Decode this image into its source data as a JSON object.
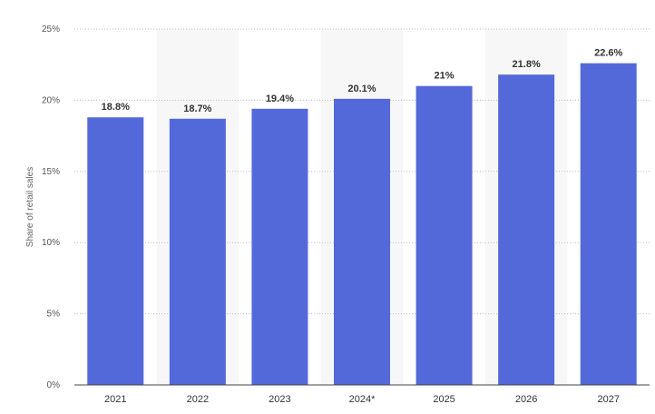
{
  "chart_data": {
    "type": "bar",
    "categories": [
      "2021",
      "2022",
      "2023",
      "2024*",
      "2025",
      "2026",
      "2027"
    ],
    "values": [
      18.8,
      18.7,
      19.4,
      20.1,
      21,
      21.8,
      22.6
    ],
    "value_labels": [
      "18.8%",
      "18.7%",
      "19.4%",
      "20.1%",
      "21%",
      "21.8%",
      "22.6%"
    ],
    "ylabel": "Share of retail sales",
    "ylim": [
      0,
      25
    ],
    "yticks": [
      0,
      5,
      10,
      15,
      20,
      25
    ],
    "ytick_labels": [
      "0%",
      "5%",
      "10%",
      "15%",
      "20%",
      "25%"
    ],
    "grid": true,
    "bar_color": "#5469d9",
    "shaded_band_color": "#f7f7f7"
  }
}
